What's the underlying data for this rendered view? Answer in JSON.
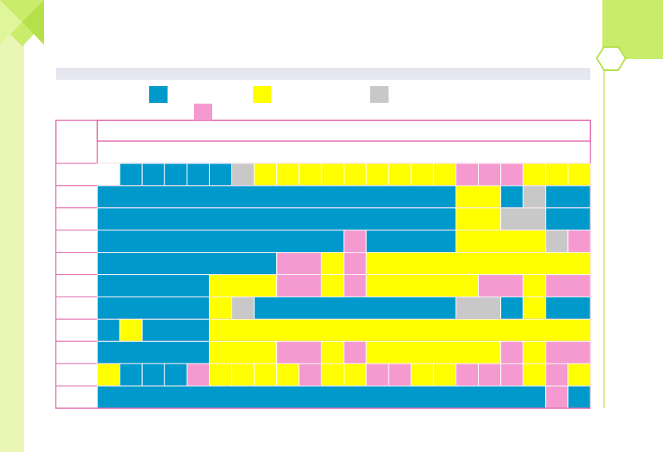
{
  "legend": [
    "#0099cc",
    "#ffff00",
    "#c8c8c8",
    "#f59ad0"
  ],
  "rows": [
    [
      [
        "#ffffff",
        1
      ],
      [
        "#0099cc",
        1
      ],
      [
        "#0099cc",
        1
      ],
      [
        "#0099cc",
        1
      ],
      [
        "#0099cc",
        1
      ],
      [
        "#0099cc",
        1
      ],
      [
        "#c8c8c8",
        1
      ],
      [
        "#ffff00",
        1
      ],
      [
        "#ffff00",
        1
      ],
      [
        "#ffff00",
        1
      ],
      [
        "#ffff00",
        1
      ],
      [
        "#ffff00",
        1
      ],
      [
        "#ffff00",
        1
      ],
      [
        "#ffff00",
        1
      ],
      [
        "#ffff00",
        1
      ],
      [
        "#ffff00",
        1
      ],
      [
        "#f59ad0",
        1
      ],
      [
        "#f59ad0",
        1
      ],
      [
        "#f59ad0",
        1
      ],
      [
        "#ffff00",
        1
      ],
      [
        "#ffff00",
        1
      ],
      [
        "#ffff00",
        1
      ]
    ],
    [
      [
        "#0099cc",
        16
      ],
      [
        "#ffff00",
        2
      ],
      [
        "#0099cc",
        1
      ],
      [
        "#c8c8c8",
        1
      ],
      [
        "#0099cc",
        2
      ]
    ],
    [
      [
        "#0099cc",
        16
      ],
      [
        "#ffff00",
        2
      ],
      [
        "#c8c8c8",
        2
      ],
      [
        "#0099cc",
        2
      ]
    ],
    [
      [
        "#0099cc",
        11
      ],
      [
        "#f59ad0",
        1
      ],
      [
        "#0099cc",
        4
      ],
      [
        "#ffff00",
        4
      ],
      [
        "#c8c8c8",
        1
      ],
      [
        "#f59ad0",
        1
      ]
    ],
    [
      [
        "#0099cc",
        8
      ],
      [
        "#f59ad0",
        2
      ],
      [
        "#ffff00",
        1
      ],
      [
        "#f59ad0",
        1
      ],
      [
        "#ffff00",
        10
      ]
    ],
    [
      [
        "#0099cc",
        5
      ],
      [
        "#ffff00",
        3
      ],
      [
        "#f59ad0",
        2
      ],
      [
        "#ffff00",
        1
      ],
      [
        "#f59ad0",
        1
      ],
      [
        "#ffff00",
        5
      ],
      [
        "#f59ad0",
        2
      ],
      [
        "#ffff00",
        1
      ],
      [
        "#f59ad0",
        2
      ]
    ],
    [
      [
        "#0099cc",
        5
      ],
      [
        "#ffff00",
        1
      ],
      [
        "#c8c8c8",
        1
      ],
      [
        "#0099cc",
        9
      ],
      [
        "#c8c8c8",
        2
      ],
      [
        "#0099cc",
        1
      ],
      [
        "#ffff00",
        1
      ],
      [
        "#0099cc",
        2
      ]
    ],
    [
      [
        "#0099cc",
        1
      ],
      [
        "#ffff00",
        1
      ],
      [
        "#0099cc",
        3
      ],
      [
        "#ffff00",
        17
      ]
    ],
    [
      [
        "#0099cc",
        5
      ],
      [
        "#ffff00",
        3
      ],
      [
        "#f59ad0",
        2
      ],
      [
        "#ffff00",
        1
      ],
      [
        "#f59ad0",
        1
      ],
      [
        "#ffff00",
        6
      ],
      [
        "#f59ad0",
        1
      ],
      [
        "#ffff00",
        1
      ],
      [
        "#f59ad0",
        2
      ]
    ],
    [
      [
        "#ffff00",
        1
      ],
      [
        "#0099cc",
        1
      ],
      [
        "#0099cc",
        1
      ],
      [
        "#0099cc",
        1
      ],
      [
        "#f59ad0",
        1
      ],
      [
        "#ffff00",
        1
      ],
      [
        "#ffff00",
        1
      ],
      [
        "#ffff00",
        1
      ],
      [
        "#ffff00",
        1
      ],
      [
        "#f59ad0",
        1
      ],
      [
        "#ffff00",
        1
      ],
      [
        "#ffff00",
        1
      ],
      [
        "#f59ad0",
        1
      ],
      [
        "#f59ad0",
        1
      ],
      [
        "#ffff00",
        1
      ],
      [
        "#ffff00",
        1
      ],
      [
        "#f59ad0",
        1
      ],
      [
        "#f59ad0",
        1
      ],
      [
        "#f59ad0",
        1
      ],
      [
        "#ffff00",
        1
      ],
      [
        "#f59ad0",
        1
      ],
      [
        "#ffff00",
        1
      ]
    ],
    [
      [
        "#0099cc",
        20
      ],
      [
        "#f59ad0",
        1
      ],
      [
        "#0099cc",
        1
      ]
    ]
  ]
}
